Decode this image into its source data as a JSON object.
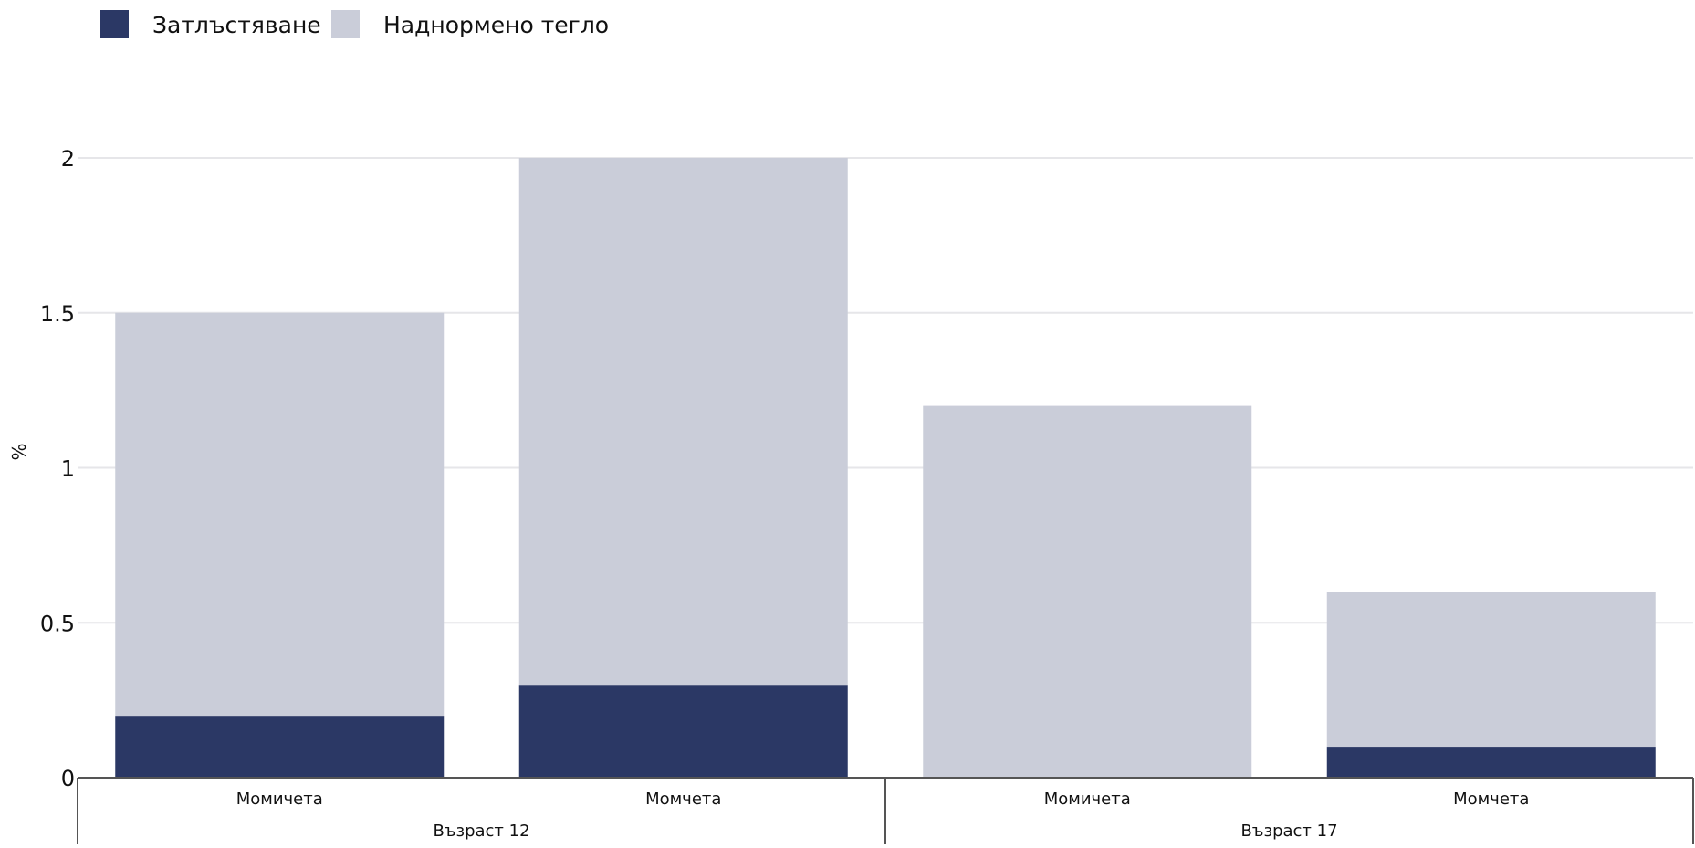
{
  "chart_data": {
    "type": "bar",
    "stacked": true,
    "ylabel": "%",
    "ylim": [
      0,
      2
    ],
    "yticks": [
      0,
      0.5,
      1,
      1.5,
      2
    ],
    "grid": true,
    "legend_position": "top-left",
    "groups": [
      {
        "label": "Възраст 12",
        "categories": [
          "Момичета",
          "Момчета"
        ]
      },
      {
        "label": "Възраст 17",
        "categories": [
          "Момичета",
          "Момчета"
        ]
      }
    ],
    "series": [
      {
        "name": "Затлъстяване",
        "color": "#2b3865",
        "values": [
          0.2,
          0.3,
          0.0,
          0.1
        ]
      },
      {
        "name": "Наднормено тегло",
        "color": "#cacdd9",
        "values": [
          1.3,
          1.7,
          1.2,
          0.5
        ]
      }
    ]
  }
}
